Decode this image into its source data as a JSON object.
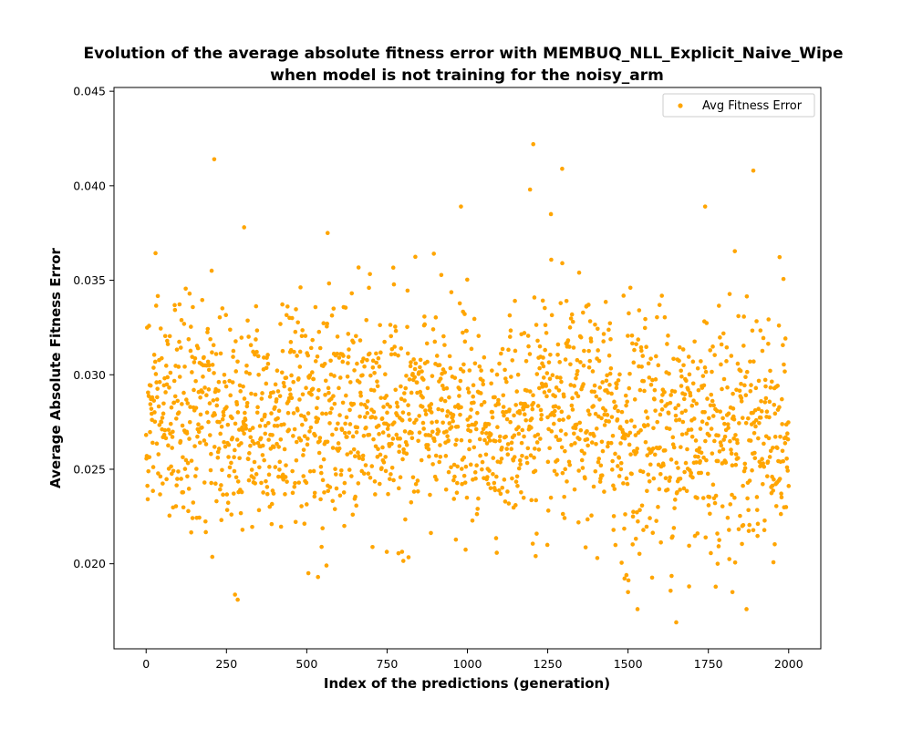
{
  "chart_data": {
    "type": "scatter",
    "title_line1": "Evolution of the average absolute fitness error with MEMBUQ_NLL_Explicit_Naive_Wipe",
    "title_line2": "when model is not training for the noisy_arm",
    "xlabel": "Index of the predictions (generation)",
    "ylabel": "Average Absolute Fitness Error",
    "xlim": [
      -100,
      2100
    ],
    "ylim": [
      0.0155,
      0.0452
    ],
    "x_ticks": [
      0,
      250,
      500,
      750,
      1000,
      1250,
      1500,
      1750,
      2000
    ],
    "x_tick_labels": [
      "0",
      "250",
      "500",
      "750",
      "1000",
      "1250",
      "1500",
      "1750",
      "2000"
    ],
    "y_ticks": [
      0.02,
      0.025,
      0.03,
      0.035,
      0.04,
      0.045
    ],
    "y_tick_labels": [
      "0.020",
      "0.025",
      "0.030",
      "0.035",
      "0.040",
      "0.045"
    ],
    "grid": false,
    "legend_position": "top-right",
    "series": [
      {
        "name": "Avg Fitness Error",
        "color": "#FFA500",
        "count": 2000,
        "notable_points": [
          {
            "x": 212,
            "y": 0.0414
          },
          {
            "x": 1205,
            "y": 0.0422
          },
          {
            "x": 1890,
            "y": 0.0408
          },
          {
            "x": 1295,
            "y": 0.0409
          },
          {
            "x": 1195,
            "y": 0.0398
          },
          {
            "x": 285,
            "y": 0.0181
          },
          {
            "x": 1650,
            "y": 0.0169
          },
          {
            "x": 1500,
            "y": 0.0185
          },
          {
            "x": 1825,
            "y": 0.0185
          },
          {
            "x": 1690,
            "y": 0.0188
          },
          {
            "x": 505,
            "y": 0.0195
          },
          {
            "x": 535,
            "y": 0.0193
          },
          {
            "x": 1495,
            "y": 0.0194
          },
          {
            "x": 305,
            "y": 0.0378
          },
          {
            "x": 565,
            "y": 0.0375
          },
          {
            "x": 980,
            "y": 0.0389
          },
          {
            "x": 1740,
            "y": 0.0389
          },
          {
            "x": 1260,
            "y": 0.0385
          }
        ]
      }
    ]
  }
}
